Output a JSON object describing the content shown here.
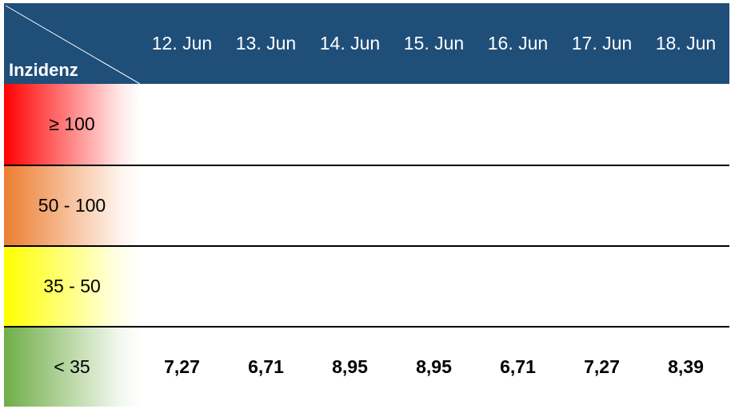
{
  "header": {
    "corner_label": "Inzidenz",
    "dates": [
      "12. Jun",
      "13. Jun",
      "14. Jun",
      "15. Jun",
      "16. Jun",
      "17. Jun",
      "18. Jun"
    ]
  },
  "colors": {
    "header": "#1f4e79",
    "red": "#ff0000",
    "orange": "#ed7d31",
    "yellow": "#ffff00",
    "green": "#70ad47"
  },
  "rows": [
    {
      "category": "≥ 100",
      "color": "#ff0000",
      "values": [
        "",
        "",
        "",
        "",
        "",
        "",
        ""
      ]
    },
    {
      "category": "50 - 100",
      "color": "#ed7d31",
      "values": [
        "",
        "",
        "",
        "",
        "",
        "",
        ""
      ]
    },
    {
      "category": "35 - 50",
      "color": "#ffff00",
      "values": [
        "",
        "",
        "",
        "",
        "",
        "",
        ""
      ]
    },
    {
      "category": "< 35",
      "color": "#70ad47",
      "values": [
        "7,27",
        "6,71",
        "8,95",
        "8,95",
        "6,71",
        "7,27",
        "8,39"
      ]
    }
  ]
}
